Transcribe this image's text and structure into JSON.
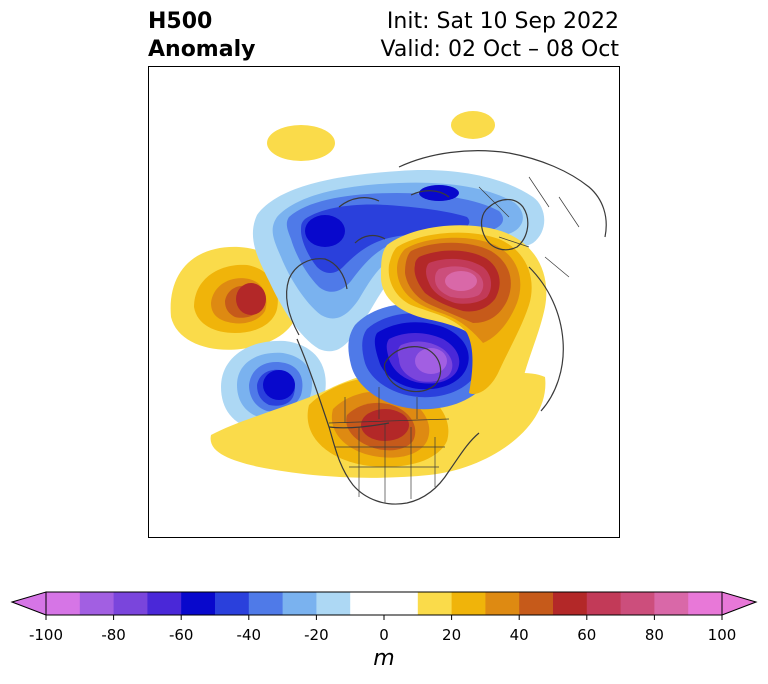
{
  "title": {
    "left_line1": "H500",
    "left_line2": "Anomaly",
    "right_line1": "Init: Sat 10 Sep 2022",
    "right_line2": "Valid: 02 Oct – 08 Oct"
  },
  "colorbar": {
    "units": "m",
    "ticks": [
      "-100",
      "-80",
      "-60",
      "-40",
      "-20",
      "0",
      "20",
      "40",
      "60",
      "80",
      "100"
    ],
    "tick_values": [
      -100,
      -80,
      -60,
      -40,
      -20,
      0,
      20,
      40,
      60,
      80,
      100
    ],
    "levels": [
      -100,
      -90,
      -80,
      -70,
      -60,
      -50,
      -40,
      -30,
      -20,
      -10,
      10,
      20,
      30,
      40,
      50,
      60,
      70,
      80,
      90,
      100
    ],
    "colors": [
      "#d675e6",
      "#a25fe2",
      "#7a45dc",
      "#4a28d8",
      "#0808cc",
      "#2a40dc",
      "#4f7ae8",
      "#7ab2ef",
      "#add8f4",
      "#ffffff",
      "#fadb4a",
      "#f0b40a",
      "#de8a12",
      "#c65a1a",
      "#b32828",
      "#c23a58",
      "#cc4e7c",
      "#d968a8",
      "#e878d8"
    ],
    "extend_low_color": "#d675e6",
    "extend_high_color": "#e878d8"
  },
  "map": {
    "projection": "north-polar stereographic",
    "region": "Northern Hemisphere / North America",
    "features": [
      {
        "sign": "positive",
        "anomaly_m": 60,
        "location": "North Pacific"
      },
      {
        "sign": "negative",
        "anomaly_m": -60,
        "location": "Northeast Pacific / Gulf of Alaska"
      },
      {
        "sign": "positive",
        "anomaly_m": 60,
        "location": "Central / Eastern United States"
      },
      {
        "sign": "negative",
        "anomaly_m": -90,
        "location": "Arctic / Northern Canada"
      },
      {
        "sign": "positive",
        "anomaly_m": 80,
        "location": "Northern Eurasia"
      },
      {
        "sign": "negative",
        "anomaly_m": -60,
        "location": "Eastern Siberia"
      }
    ]
  }
}
